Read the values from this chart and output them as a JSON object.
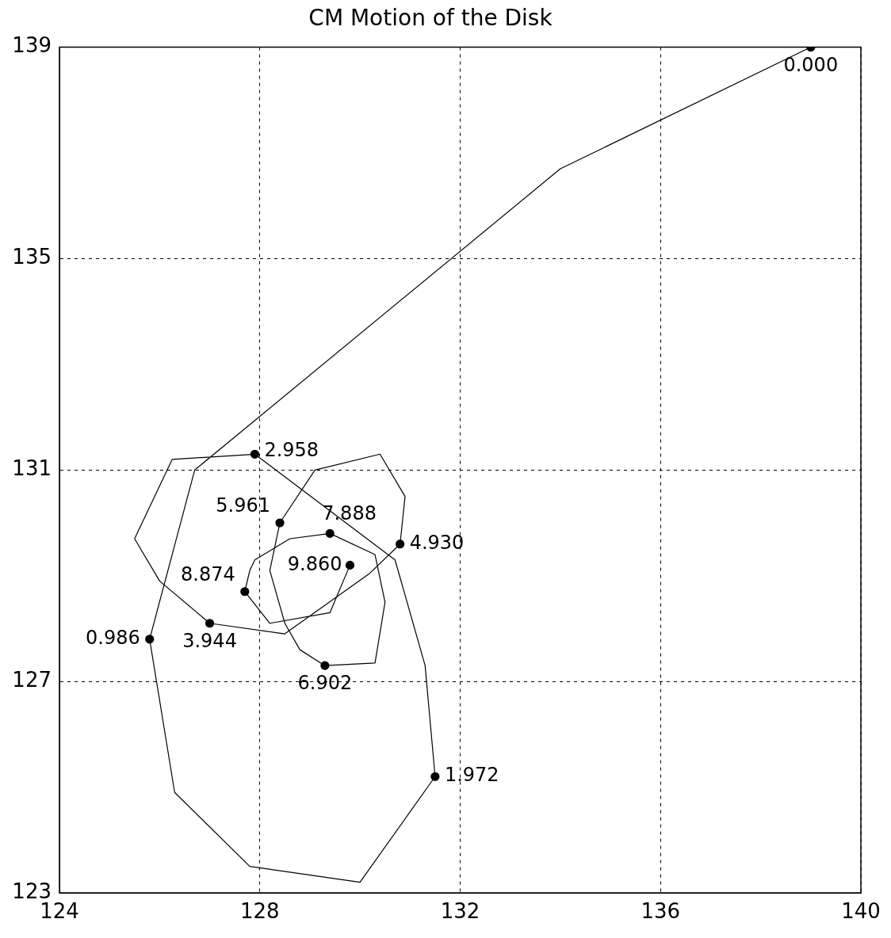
{
  "chart_data": {
    "type": "line",
    "title": "CM Motion of the Disk",
    "xlim": [
      124,
      140
    ],
    "ylim": [
      123,
      139
    ],
    "xticks": [
      124,
      128,
      132,
      136,
      140
    ],
    "yticks": [
      123,
      127,
      131,
      135,
      139
    ],
    "grid": true,
    "legend": false,
    "series": [
      {
        "type": "line",
        "color": "#000000",
        "marker": "none",
        "line_style": "solid",
        "x": [
          139.0,
          134.0,
          126.7,
          125.8,
          126.3,
          127.8,
          130.0,
          131.5,
          131.3,
          130.7,
          127.9,
          126.25,
          125.5,
          126.0,
          127.0,
          128.5,
          130.2,
          130.8,
          130.9,
          130.4,
          129.1,
          128.4,
          128.2,
          128.5,
          128.8,
          129.3,
          130.3,
          130.5,
          130.3,
          129.4,
          128.6,
          127.9,
          127.8,
          127.7,
          128.2,
          129.4,
          129.8
        ],
        "values": [
          139.0,
          136.7,
          131.0,
          127.8,
          124.9,
          123.5,
          123.2,
          125.2,
          127.3,
          129.3,
          131.3,
          131.2,
          129.7,
          128.9,
          128.1,
          127.9,
          129.05,
          129.6,
          130.5,
          131.3,
          131.0,
          130.0,
          129.1,
          128.1,
          127.6,
          127.3,
          127.35,
          128.5,
          129.4,
          129.8,
          129.7,
          129.3,
          129.1,
          128.7,
          128.1,
          128.3,
          129.2
        ]
      },
      {
        "type": "scatter",
        "color": "#000000",
        "marker": "circle",
        "x": [
          139.0,
          125.8,
          131.5,
          127.9,
          127.0,
          130.8,
          128.4,
          129.3,
          129.4,
          127.7,
          129.8
        ],
        "values": [
          139.0,
          127.8,
          125.2,
          131.3,
          128.1,
          129.6,
          130.0,
          127.3,
          129.8,
          128.7,
          129.2
        ]
      }
    ],
    "annotations": [
      {
        "text": "0.000",
        "x": 139.0,
        "y": 139.0
      },
      {
        "text": "0.986",
        "x": 125.8,
        "y": 127.8
      },
      {
        "text": "1.972",
        "x": 131.5,
        "y": 125.2
      },
      {
        "text": "2.958",
        "x": 127.9,
        "y": 131.3
      },
      {
        "text": "3.944",
        "x": 127.0,
        "y": 128.1
      },
      {
        "text": "4.930",
        "x": 130.8,
        "y": 129.6
      },
      {
        "text": "5.961",
        "x": 128.4,
        "y": 130.0
      },
      {
        "text": "6.902",
        "x": 129.3,
        "y": 127.3
      },
      {
        "text": "7.888",
        "x": 129.4,
        "y": 129.8
      },
      {
        "text": "8.874",
        "x": 127.7,
        "y": 128.7
      },
      {
        "text": "9.860",
        "x": 129.8,
        "y": 129.2
      }
    ]
  }
}
